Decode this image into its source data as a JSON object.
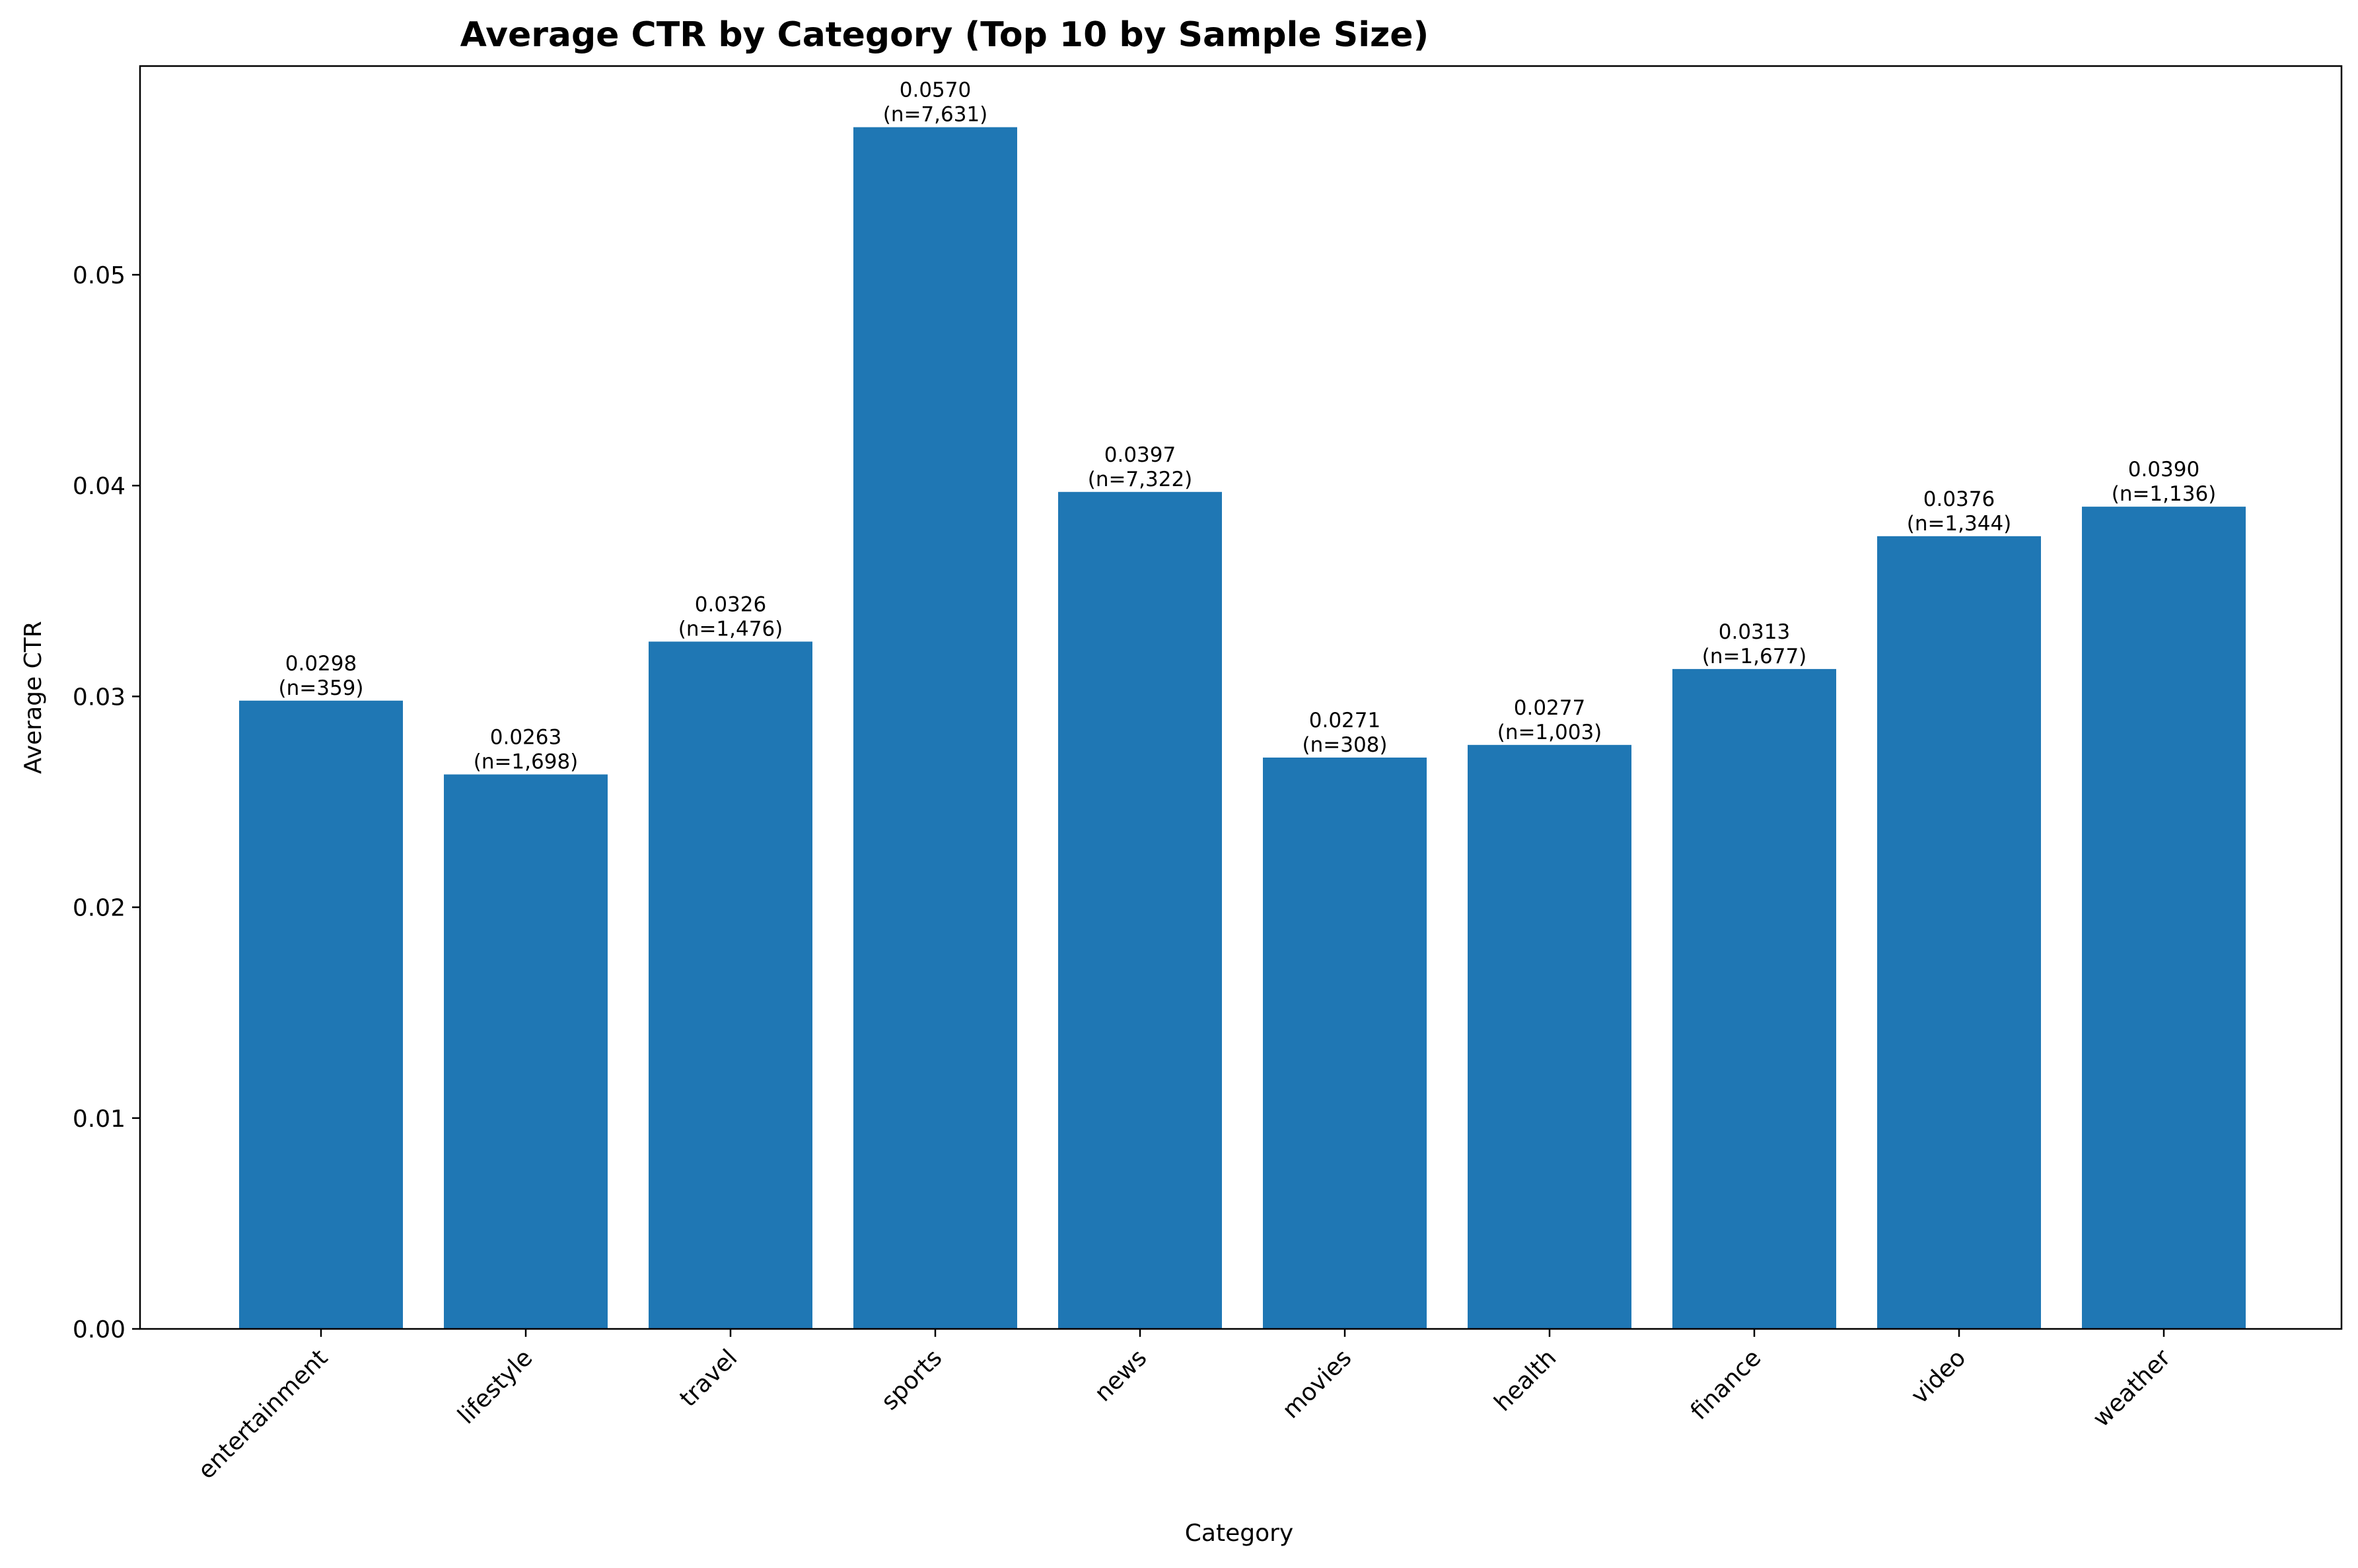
{
  "chart_data": {
    "type": "bar",
    "title": "Average CTR by Category (Top 10 by Sample Size)",
    "xlabel": "Category",
    "ylabel": "Average CTR",
    "categories": [
      "entertainment",
      "lifestyle",
      "travel",
      "sports",
      "news",
      "movies",
      "health",
      "finance",
      "video",
      "weather"
    ],
    "values": [
      0.0298,
      0.0263,
      0.0326,
      0.057,
      0.0397,
      0.0271,
      0.0277,
      0.0313,
      0.0376,
      0.039
    ],
    "value_labels": [
      "0.0298",
      "0.0263",
      "0.0326",
      "0.0570",
      "0.0397",
      "0.0271",
      "0.0277",
      "0.0313",
      "0.0376",
      "0.0390"
    ],
    "sample_labels": [
      "(n=359)",
      "(n=1,698)",
      "(n=1,476)",
      "(n=7,631)",
      "(n=7,322)",
      "(n=308)",
      "(n=1,003)",
      "(n=1,677)",
      "(n=1,344)",
      "(n=1,136)"
    ],
    "ylim": [
      0,
      0.0599
    ],
    "yticks": [
      0,
      0.01,
      0.02,
      0.03,
      0.04,
      0.05
    ],
    "ytick_labels": [
      "0.00",
      "0.01",
      "0.02",
      "0.03",
      "0.04",
      "0.05"
    ],
    "bar_color": "#1f77b4",
    "grid": false,
    "legend": "none"
  }
}
